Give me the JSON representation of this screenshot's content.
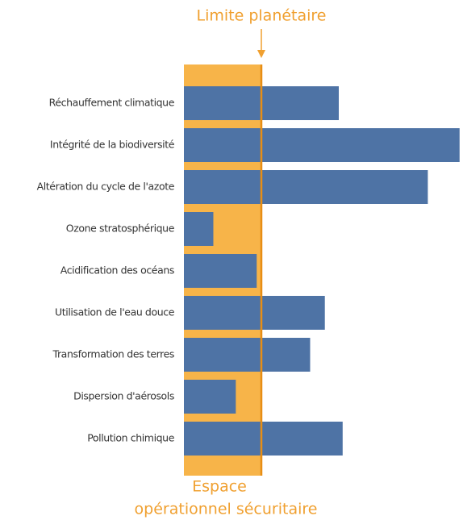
{
  "chart_data": {
    "type": "bar",
    "orientation": "horizontal",
    "title": "Limite planétaire",
    "safe_zone_label": [
      "Espace",
      "opérationnel sécuritaire"
    ],
    "categories": [
      "Réchauffement climatique",
      "Intégrité de la biodiversité",
      "Altération du cycle de l'azote",
      "Ozone stratosphérique",
      "Acidification des océans",
      "Utilisation de l'eau douce",
      "Transformation des terres",
      "Dispersion d'aérosols",
      "Pollution chimique"
    ],
    "values": [
      2.0,
      3.56,
      3.15,
      0.38,
      0.94,
      1.82,
      1.63,
      0.67,
      2.05
    ],
    "boundary": 1,
    "xlim": [
      0,
      3.6
    ],
    "color": "#4e73a5",
    "safe_zone_color": "#f7b449",
    "boundary_color": "#e88e14"
  }
}
